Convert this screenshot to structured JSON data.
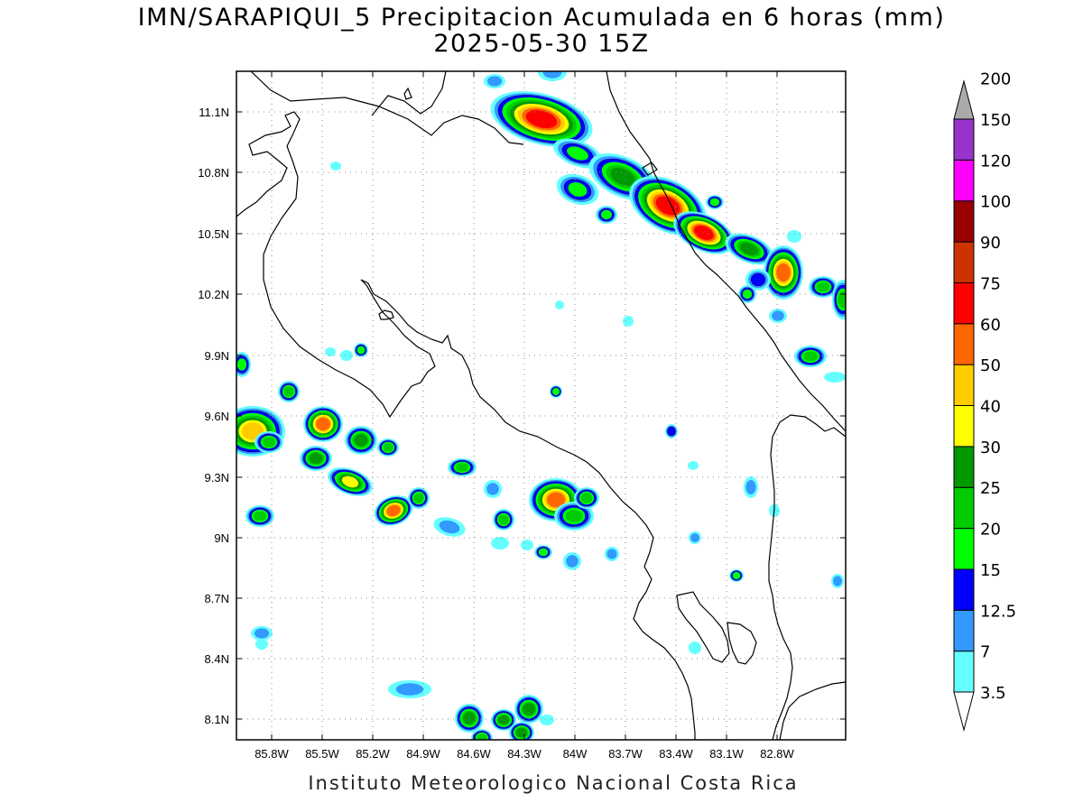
{
  "title": {
    "line1": "IMN/SARAPIQUI_5 Precipitacion Acumulada en 6 horas (mm)",
    "line2": "2025-05-30 15Z"
  },
  "credit": "Instituto Meteorologico Nacional Costa Rica",
  "axes": {
    "lat_ticks": [
      "11.1N",
      "10.8N",
      "10.5N",
      "10.2N",
      "9.9N",
      "9.6N",
      "9.3N",
      "9N",
      "8.7N",
      "8.4N",
      "8.1N"
    ],
    "lon_ticks": [
      "85.8W",
      "85.5W",
      "85.2W",
      "84.9W",
      "84.6W",
      "84.3W",
      "84W",
      "83.7W",
      "83.4W",
      "83.1W",
      "82.8W"
    ]
  },
  "colorbar": {
    "levels": [
      "3.5",
      "7",
      "12.5",
      "15",
      "20",
      "25",
      "30",
      "40",
      "50",
      "60",
      "75",
      "90",
      "100",
      "120",
      "150",
      "200"
    ],
    "colors": [
      "#66ffff",
      "#3399ff",
      "#0000ff",
      "#00ff00",
      "#00cc00",
      "#009900",
      "#ffff00",
      "#ffcc00",
      "#ff6600",
      "#ff0000",
      "#cc3300",
      "#990000",
      "#ff00ff",
      "#9933cc",
      "#f2f2f2",
      "#aaaaaa"
    ]
  },
  "palette": {
    "l1": "#66ffff",
    "l2": "#3399ff",
    "l3": "#0000ff",
    "l4": "#00ff00",
    "l5": "#00cc00",
    "l6": "#009900",
    "l7": "#ffff00",
    "l8": "#ffcc00",
    "l9": "#ff6600",
    "l10": "#ff0000"
  }
}
